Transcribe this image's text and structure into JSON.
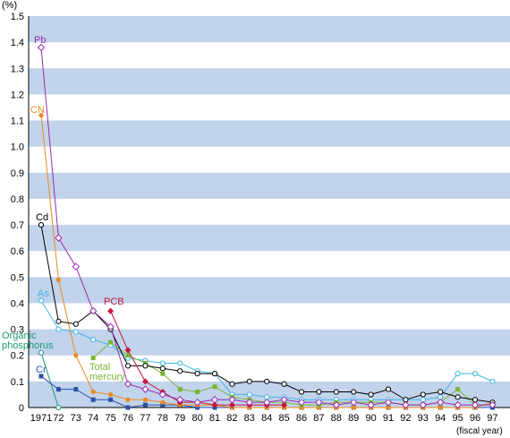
{
  "chart_data": {
    "type": "line",
    "y_unit": "(%)",
    "x_unit": "(fiscal year)",
    "ylim": [
      0,
      1.5
    ],
    "y_ticks": [
      "0",
      "0.1",
      "0.2",
      "0.3",
      "0.4",
      "0.5",
      "0.6",
      "0.7",
      "0.8",
      "0.9",
      "1.0",
      "1.1",
      "1.2",
      "1.3",
      "1.4",
      "1.5"
    ],
    "x_ticks": [
      "1971",
      "72",
      "73",
      "74",
      "75",
      "76",
      "77",
      "78",
      "79",
      "80",
      "81",
      "82",
      "83",
      "84",
      "85",
      "86",
      "87",
      "88",
      "89",
      "90",
      "91",
      "92",
      "93",
      "94",
      "95",
      "96",
      "97"
    ],
    "x_years": [
      1971,
      1972,
      1973,
      1974,
      1975,
      1976,
      1977,
      1978,
      1979,
      1980,
      1981,
      1982,
      1983,
      1984,
      1985,
      1986,
      1987,
      1988,
      1989,
      1990,
      1991,
      1992,
      1993,
      1994,
      1995,
      1996,
      1997
    ],
    "grid": "horizontal bands",
    "colors": {
      "band": "#c2d3ec",
      "Pb": "#9a2bae",
      "CN": "#ec8a1d",
      "Cd": "#000000",
      "As": "#3db7e8",
      "PCB": "#c4173c",
      "Organic phosphorus": "#1a9a73",
      "Total mercury": "#7ab532",
      "Cr": "#2952a8"
    },
    "series": [
      {
        "name": "Pb",
        "marker": "diamond-open",
        "values": [
          1.38,
          0.65,
          0.54,
          0.37,
          0.31,
          0.09,
          0.07,
          0.05,
          0.03,
          0.02,
          0.03,
          0.03,
          0.02,
          0.02,
          0.03,
          0.02,
          0.02,
          0.01,
          0.02,
          0.01,
          0.02,
          0.01,
          0.01,
          0.02,
          0.01,
          0.01,
          0.01
        ]
      },
      {
        "name": "CN",
        "marker": "circle-filled",
        "values": [
          1.12,
          0.49,
          0.2,
          0.06,
          0.05,
          0.03,
          0.03,
          0.02,
          0.01,
          0.01,
          0.01,
          0.0,
          0.0,
          0.0,
          0.0,
          0.0,
          0.0,
          0.0,
          0.0,
          0.0,
          0.0,
          0.0,
          0.0,
          0.0,
          0.0,
          0.0,
          0.02
        ]
      },
      {
        "name": "Cd",
        "marker": "circle-open",
        "values": [
          0.7,
          0.33,
          0.32,
          0.37,
          0.3,
          0.16,
          0.16,
          0.15,
          0.14,
          0.13,
          0.13,
          0.09,
          0.1,
          0.1,
          0.09,
          0.06,
          0.06,
          0.06,
          0.06,
          0.05,
          0.07,
          0.03,
          0.05,
          0.06,
          0.04,
          0.03,
          0.02
        ]
      },
      {
        "name": "As",
        "marker": "circle-open",
        "values": [
          0.41,
          0.3,
          0.29,
          0.26,
          0.24,
          0.19,
          0.18,
          0.17,
          0.17,
          0.14,
          0.13,
          0.05,
          0.05,
          0.04,
          0.04,
          0.03,
          0.03,
          0.03,
          0.03,
          0.03,
          0.03,
          0.03,
          0.03,
          0.04,
          0.13,
          0.13,
          0.1
        ]
      },
      {
        "name": "PCB",
        "marker": "diamond-filled",
        "values": [
          null,
          null,
          null,
          null,
          0.37,
          0.22,
          0.1,
          0.06,
          0.02,
          0.02,
          0.01,
          0.01,
          0.01,
          0.01,
          0.01,
          null,
          null,
          null,
          null,
          null,
          null,
          null,
          null,
          null,
          null,
          null,
          null
        ]
      },
      {
        "name": "Organic phosphorus",
        "marker": "circle-open",
        "values": [
          0.21,
          0.0,
          null,
          null,
          null,
          null,
          null,
          null,
          null,
          null,
          null,
          null,
          null,
          null,
          null,
          null,
          null,
          null,
          null,
          null,
          null,
          null,
          null,
          null,
          null,
          null,
          null
        ]
      },
      {
        "name": "Total mercury",
        "marker": "square-filled",
        "values": [
          null,
          null,
          null,
          0.19,
          0.25,
          0.2,
          0.17,
          0.13,
          0.07,
          0.06,
          0.08,
          0.04,
          0.03,
          0.02,
          0.02,
          0.01,
          0.01,
          0.02,
          0.02,
          0.02,
          0.02,
          0.01,
          0.01,
          0.02,
          0.07,
          0.01,
          0.01
        ]
      },
      {
        "name": "Cr",
        "marker": "square-filled",
        "values": [
          0.12,
          0.07,
          0.07,
          0.03,
          0.03,
          0.0,
          0.01,
          0.01,
          0.01,
          0.0,
          0.0,
          0.0,
          0.0,
          0.0,
          0.0,
          0.0,
          0.0,
          0.0,
          0.0,
          0.0,
          0.0,
          0.0,
          0.0,
          0.0,
          0.0,
          0.0,
          0.0
        ]
      }
    ],
    "annotations": [
      {
        "series": "Pb",
        "text": "Pb"
      },
      {
        "series": "CN",
        "text": "CN"
      },
      {
        "series": "Cd",
        "text": "Cd"
      },
      {
        "series": "As",
        "text": "As"
      },
      {
        "series": "PCB",
        "text": "PCB"
      },
      {
        "series": "Organic phosphorus",
        "lines": [
          "Organic",
          "phosphorus"
        ]
      },
      {
        "series": "Total mercury",
        "lines": [
          "Total",
          "mercury"
        ]
      },
      {
        "series": "Cr",
        "text": "Cr"
      }
    ]
  }
}
